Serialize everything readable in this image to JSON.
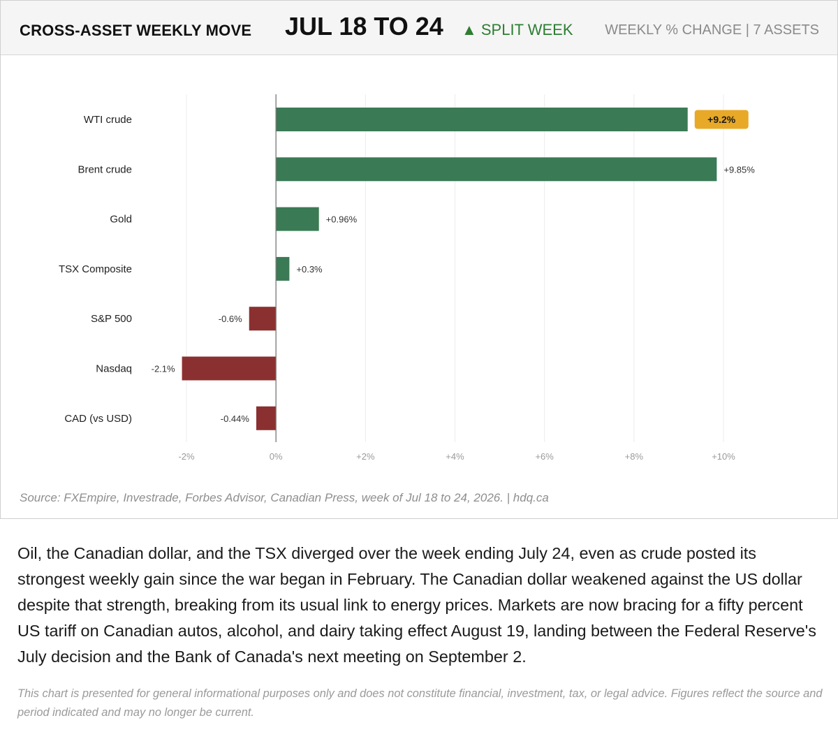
{
  "header": {
    "title": "CROSS-ASSET WEEKLY MOVE",
    "dates": "JUL 18 TO 24",
    "status": "▲ SPLIT WEEK",
    "meta": "WEEKLY % CHANGE  |  7 ASSETS"
  },
  "colors": {
    "positive": "#3a7a55",
    "negative": "#8b3030",
    "highlight": "#e8a928",
    "status": "#2e7d32"
  },
  "chart_data": {
    "type": "bar",
    "orientation": "horizontal",
    "categories": [
      "WTI crude",
      "Brent crude",
      "Gold",
      "TSX Composite",
      "S&P 500",
      "Nasdaq",
      "CAD (vs USD)"
    ],
    "values": [
      9.2,
      9.85,
      0.96,
      0.3,
      -0.6,
      -2.1,
      -0.44
    ],
    "data_labels": [
      "+9.2%",
      "+9.85%",
      "+0.96%",
      "+0.3%",
      "-0.6%",
      "-2.1%",
      "-0.44%"
    ],
    "highlighted_index": 0,
    "xlim": [
      -2,
      10
    ],
    "x_ticks": [
      -2,
      0,
      2,
      4,
      6,
      8,
      10
    ],
    "x_tick_labels": [
      "-2%",
      "0%",
      "+2%",
      "+4%",
      "+6%",
      "+8%",
      "+10%"
    ],
    "grid": true,
    "title": "",
    "xlabel": "",
    "ylabel": ""
  },
  "source": "Source: FXEmpire, Investrade, Forbes Advisor, Canadian Press, week of Jul 18 to 24, 2026.  |  hdq.ca",
  "narrative": "Oil, the Canadian dollar, and the TSX diverged over the week ending July 24, even as crude posted its strongest weekly gain since the war began in February. The Canadian dollar weakened against the US dollar despite that strength, breaking from its usual link to energy prices. Markets are now bracing for a fifty percent US tariff on Canadian autos, alcohol, and dairy taking effect August 19, landing between the Federal Reserve's July decision and the Bank of Canada's next meeting on September 2.",
  "disclaimer": "This chart is presented for general informational purposes only and does not constitute financial, investment, tax, or legal advice. Figures reflect the source and period indicated and may no longer be current."
}
